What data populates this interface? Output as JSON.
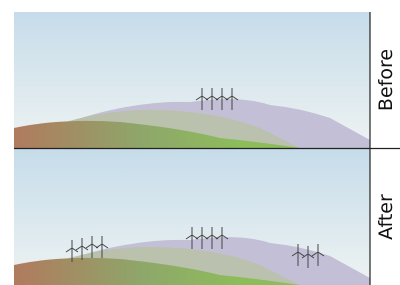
{
  "panels": [
    {
      "label": "Before"
    },
    {
      "label": "After"
    }
  ]
}
